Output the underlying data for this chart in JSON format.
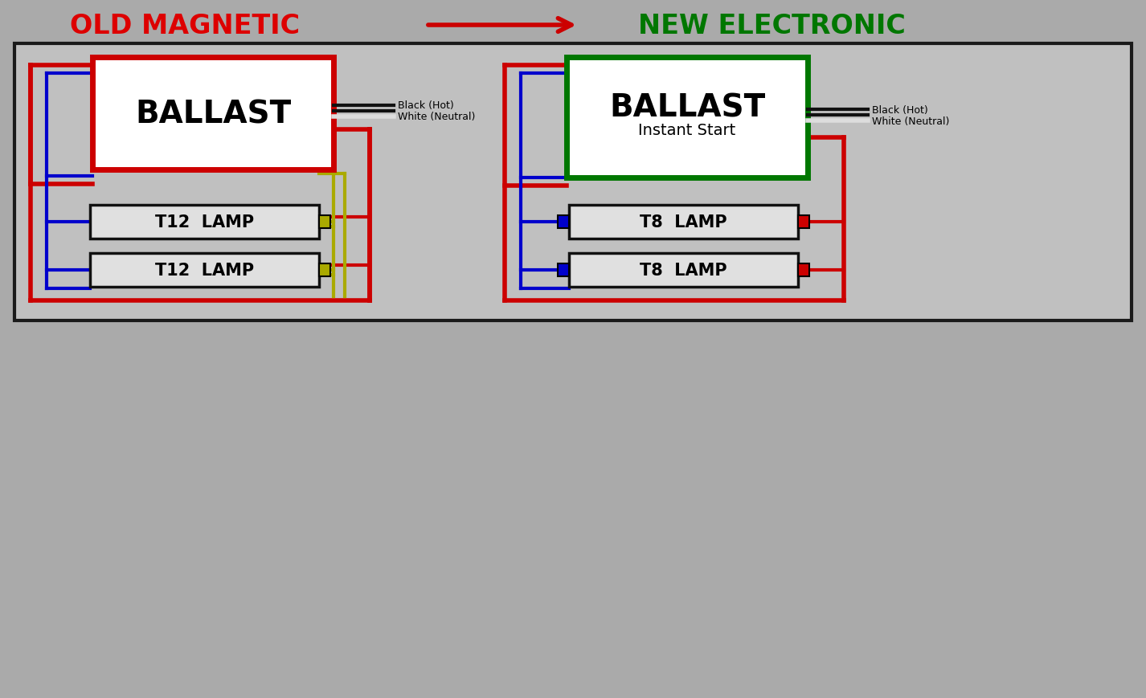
{
  "bg_color": "#aaaaaa",
  "diagram_bg": "#c0c0c0",
  "title_old": "OLD MAGNETIC",
  "title_new": "NEW ELECTRONIC",
  "title_old_color": "#dd0000",
  "title_new_color": "#007700",
  "arrow_color": "#cc0000",
  "outer_border_color": "#1a1a1a",
  "ballast_left_border": "#cc0000",
  "ballast_right_border": "#007700",
  "ballast_fill": "#ffffff",
  "lamp_fill": "#e0e0e0",
  "lamp_border": "#111111",
  "wire_red": "#cc0000",
  "wire_blue": "#0000cc",
  "wire_yellow": "#aaaa00",
  "wire_black": "#111111",
  "wire_white": "#dddddd",
  "wire_lw": 3.0,
  "note_black": "Black (Hot)",
  "note_white": "White (Neutral)"
}
